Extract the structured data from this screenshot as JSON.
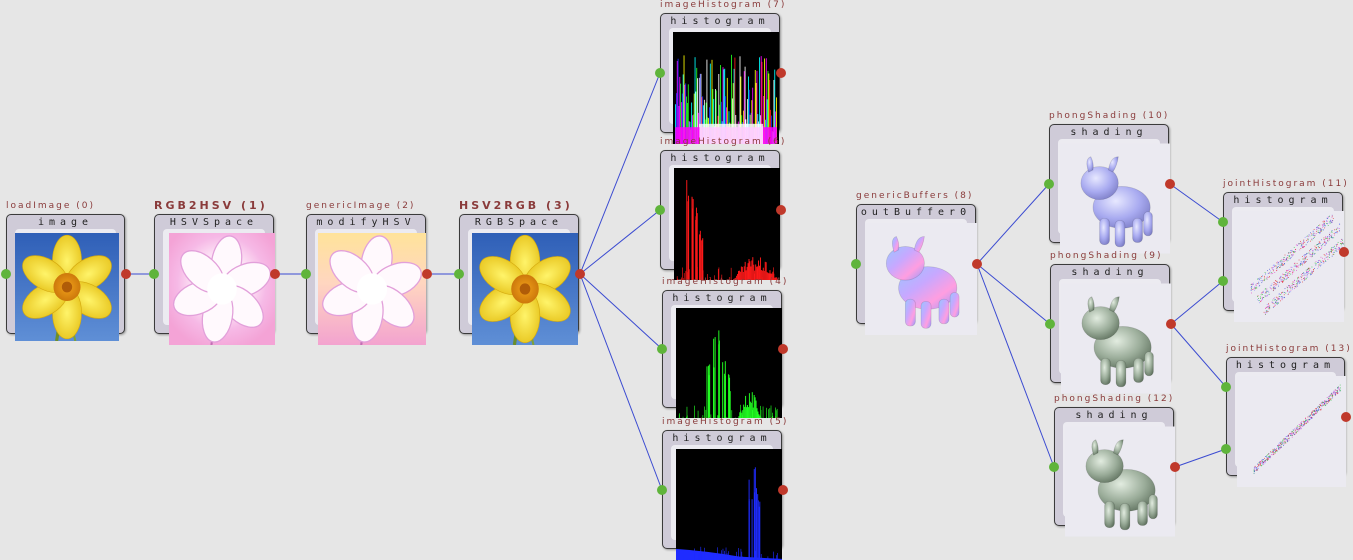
{
  "colors": {
    "edge": "#3b4bd1",
    "inPort": "#5fb43b",
    "outPort": "#c0392b",
    "title": "#8a3b3b"
  },
  "nodes": [
    {
      "id": "n0",
      "title": "loadImage (0)",
      "label": "image",
      "content": "daffodil"
    },
    {
      "id": "n1",
      "title": "RGB2HSV (1)",
      "label": "HSVSpace",
      "content": "daffodil-hsv"
    },
    {
      "id": "n2",
      "title": "genericImage (2)",
      "label": "modifyHSV",
      "content": "daffodil-hsv-warm"
    },
    {
      "id": "n3",
      "title": "HSV2RGB (3)",
      "label": "RGBSpace",
      "content": "daffodil"
    },
    {
      "id": "n7",
      "title": "imageHistogram (7)",
      "label": "histogram",
      "content": "histogram-rgb"
    },
    {
      "id": "n6",
      "title": "imageHistogram (6)",
      "label": "histogram",
      "content": "histogram-red"
    },
    {
      "id": "n4",
      "title": "imageHistogram (4)",
      "label": "histogram",
      "content": "histogram-green"
    },
    {
      "id": "n5",
      "title": "imageHistogram (5)",
      "label": "histogram",
      "content": "histogram-blue"
    },
    {
      "id": "n8",
      "title": "genericBuffers (8)",
      "label": "outBuffer0",
      "content": "cow-normals"
    },
    {
      "id": "n10",
      "title": "phongShading (10)",
      "label": "shading",
      "content": "cow-lavender"
    },
    {
      "id": "n9",
      "title": "phongShading (9)",
      "label": "shading",
      "content": "cow-green"
    },
    {
      "id": "n12",
      "title": "phongShading (12)",
      "label": "shading",
      "content": "cow-green"
    },
    {
      "id": "n11",
      "title": "jointHistogram (11)",
      "label": "histogram",
      "content": "joint-histogram-a"
    },
    {
      "id": "n13",
      "title": "jointHistogram (13)",
      "label": "histogram",
      "content": "joint-histogram-b"
    }
  ],
  "edges": [
    {
      "from": "n0",
      "to": "n1",
      "toPort": 0
    },
    {
      "from": "n1",
      "to": "n2",
      "toPort": 0
    },
    {
      "from": "n2",
      "to": "n3",
      "toPort": 0
    },
    {
      "from": "n3",
      "to": "n7",
      "toPort": 0
    },
    {
      "from": "n3",
      "to": "n6",
      "toPort": 0
    },
    {
      "from": "n3",
      "to": "n4",
      "toPort": 0
    },
    {
      "from": "n3",
      "to": "n5",
      "toPort": 0
    },
    {
      "from": "n8",
      "to": "n10",
      "toPort": 0
    },
    {
      "from": "n8",
      "to": "n9",
      "toPort": 0
    },
    {
      "from": "n8",
      "to": "n12",
      "toPort": 0
    },
    {
      "from": "n10",
      "to": "n11",
      "toPort": 0
    },
    {
      "from": "n9",
      "to": "n11",
      "toPort": 1
    },
    {
      "from": "n9",
      "to": "n13",
      "toPort": 0
    },
    {
      "from": "n12",
      "to": "n13",
      "toPort": 1
    }
  ]
}
